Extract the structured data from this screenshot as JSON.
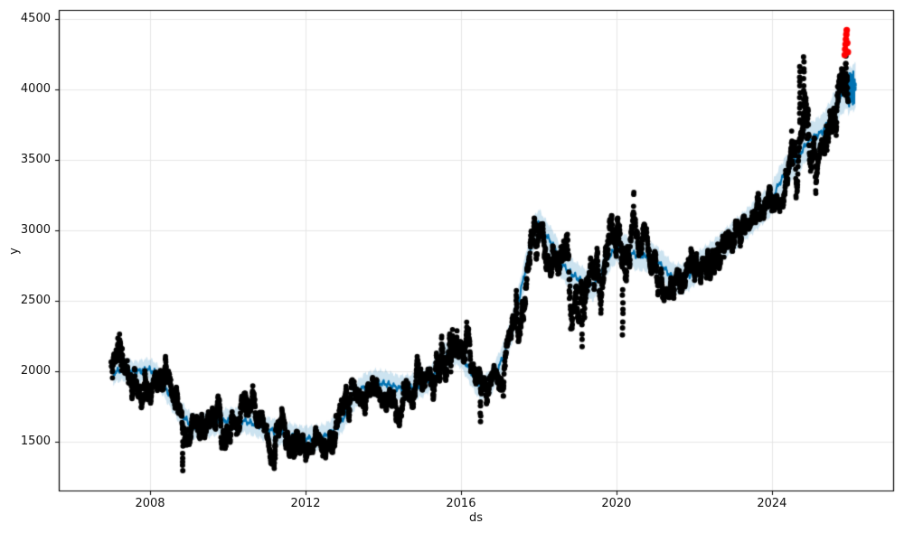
{
  "chart_data": {
    "type": "line",
    "title": "",
    "xlabel": "ds",
    "ylabel": "y",
    "xlim": [
      2005.65,
      2027.12
    ],
    "ylim": [
      1154,
      4564
    ],
    "xticks": [
      2008,
      2012,
      2016,
      2020,
      2024
    ],
    "yticks": [
      1500,
      2000,
      2500,
      3000,
      3500,
      4000,
      4500
    ],
    "grid": true,
    "legend": "none",
    "colors": {
      "background": "#ffffff",
      "gridline": "#e6e6e6",
      "spine": "#000000",
      "scatter_point": "#000000",
      "forecast_line": "#0072b2",
      "uncertainty_band": "rgba(0,114,178,0.2)",
      "anomaly_point": "#ff0000",
      "tick_text": "#111111"
    },
    "trend": {
      "x": [
        2007.05,
        2007.2,
        2007.4,
        2007.6,
        2007.8,
        2007.95,
        2008.1,
        2008.25,
        2008.4,
        2008.6,
        2008.8,
        2009.0,
        2009.2,
        2009.5,
        2009.8,
        2010.1,
        2010.4,
        2010.7,
        2011.0,
        2011.3,
        2011.6,
        2011.9,
        2012.2,
        2012.5,
        2012.8,
        2013.0,
        2013.2,
        2013.5,
        2013.8,
        2014.1,
        2014.4,
        2014.7,
        2015.0,
        2015.25,
        2015.5,
        2015.75,
        2016.0,
        2016.2,
        2016.45,
        2016.65,
        2016.85,
        2017.1,
        2017.3,
        2017.5,
        2017.7,
        2017.9,
        2018.0,
        2018.2,
        2018.4,
        2018.6,
        2018.8,
        2019.0,
        2019.2,
        2019.4,
        2019.6,
        2019.8,
        2020.0,
        2020.2,
        2020.5,
        2020.8,
        2021.0,
        2021.2,
        2021.45,
        2021.7,
        2021.9,
        2022.2,
        2022.5,
        2022.8,
        2023.1,
        2023.4,
        2023.7,
        2024.0,
        2024.2,
        2024.45,
        2024.7,
        2024.9,
        2025.1,
        2025.3,
        2025.5,
        2025.7,
        2025.85,
        2025.96
      ],
      "y": [
        1985,
        2005,
        2010,
        1995,
        2005,
        2015,
        1995,
        1945,
        1880,
        1790,
        1700,
        1630,
        1600,
        1620,
        1640,
        1655,
        1650,
        1625,
        1590,
        1565,
        1545,
        1525,
        1525,
        1540,
        1600,
        1680,
        1800,
        1890,
        1920,
        1910,
        1880,
        1885,
        1905,
        1960,
        2080,
        2150,
        2120,
        2020,
        1900,
        1885,
        1960,
        2110,
        2280,
        2520,
        2780,
        3000,
        3045,
        2960,
        2880,
        2760,
        2700,
        2660,
        2620,
        2610,
        2680,
        2810,
        2880,
        2865,
        2825,
        2815,
        2790,
        2740,
        2660,
        2655,
        2690,
        2765,
        2825,
        2905,
        2980,
        3060,
        3140,
        3220,
        3340,
        3450,
        3530,
        3620,
        3665,
        3700,
        3790,
        3910,
        3975,
        4000
      ],
      "band_half": [
        75,
        75,
        75,
        75,
        75,
        75,
        78,
        80,
        82,
        85,
        85,
        85,
        85,
        85,
        85,
        85,
        85,
        85,
        85,
        85,
        85,
        85,
        85,
        85,
        85,
        88,
        90,
        90,
        90,
        88,
        88,
        88,
        88,
        90,
        92,
        92,
        92,
        92,
        92,
        92,
        92,
        95,
        98,
        100,
        102,
        104,
        105,
        105,
        105,
        105,
        105,
        105,
        105,
        105,
        105,
        105,
        105,
        105,
        105,
        105,
        105,
        105,
        105,
        105,
        105,
        105,
        105,
        105,
        105,
        105,
        108,
        110,
        112,
        114,
        116,
        118,
        120,
        122,
        125,
        128,
        132,
        135
      ]
    },
    "line_wiggle": {
      "freqs": [
        7.3,
        15.8,
        31.7
      ],
      "amps": [
        14,
        9,
        6
      ]
    },
    "scatter": {
      "start": 2007.0,
      "end": 2025.96,
      "points_per_year": 252,
      "marker_radius": 2.9,
      "noise_sd": 22,
      "noise_phi": 0.965,
      "max_dev": 270,
      "seed": 7,
      "volatile_periods": [
        {
          "from": 2007.0,
          "to": 2007.45,
          "mult": 1.35
        },
        {
          "from": 2015.35,
          "to": 2016.15,
          "mult": 1.5
        },
        {
          "from": 2017.4,
          "to": 2018.25,
          "mult": 1.5
        },
        {
          "from": 2018.55,
          "to": 2020.45,
          "mult": 1.7
        },
        {
          "from": 2022.3,
          "to": 2023.2,
          "mult": 1.25
        },
        {
          "from": 2024.5,
          "to": 2025.15,
          "mult": 1.9
        },
        {
          "from": 2025.4,
          "to": 2025.96,
          "mult": 1.6
        }
      ]
    },
    "outlier_streaks": [
      {
        "x": 2007.17,
        "lo": 2120,
        "hi": 2230,
        "n": 5
      },
      {
        "x": 2008.84,
        "lo": 1295,
        "hi": 1490,
        "n": 7
      },
      {
        "x": 2011.22,
        "lo": 1385,
        "hi": 1495,
        "n": 6
      },
      {
        "x": 2016.5,
        "lo": 1645,
        "hi": 1790,
        "n": 5
      },
      {
        "x": 2019.12,
        "lo": 2175,
        "hi": 2420,
        "n": 6
      },
      {
        "x": 2020.16,
        "lo": 2265,
        "hi": 2580,
        "n": 8
      },
      {
        "x": 2024.72,
        "lo": 3750,
        "hi": 4170,
        "n": 12
      },
      {
        "x": 2024.82,
        "lo": 3820,
        "hi": 4235,
        "n": 11
      },
      {
        "x": 2025.9,
        "lo": 3960,
        "hi": 4235,
        "n": 10
      }
    ],
    "forecast_block": {
      "x_start": 2025.96,
      "x_end": 2026.16,
      "y_start": 3990,
      "y_end": 4025,
      "amplitude": 122,
      "band_half": 160
    },
    "anomalies": {
      "marker_radius": 3.6,
      "points": [
        {
          "x": 2025.875,
          "y": 4245
        },
        {
          "x": 2025.885,
          "y": 4285
        },
        {
          "x": 2025.895,
          "y": 4320
        },
        {
          "x": 2025.905,
          "y": 4355
        },
        {
          "x": 2025.915,
          "y": 4390
        },
        {
          "x": 2025.925,
          "y": 4420
        },
        {
          "x": 2025.94,
          "y": 4330
        },
        {
          "x": 2025.955,
          "y": 4265
        }
      ]
    }
  }
}
